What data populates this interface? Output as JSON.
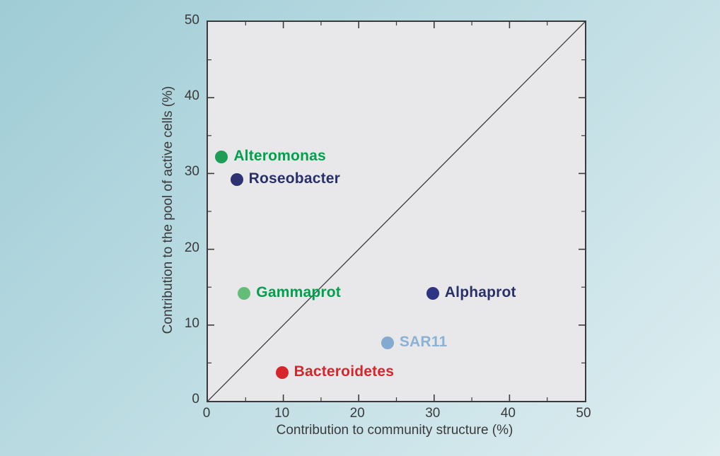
{
  "page": {
    "background_top": "#9fccd6",
    "background_bottom": "#deeef1"
  },
  "chart_data": {
    "type": "scatter",
    "title": "",
    "xlabel": "Contribution to community structure (%)",
    "ylabel": "Contribution to the pool of active cells (%)",
    "xlim": [
      0,
      50
    ],
    "ylim": [
      0,
      50
    ],
    "major_ticks": [
      0,
      10,
      20,
      30,
      40,
      50
    ],
    "minor_ticks": [
      5,
      15,
      25,
      35,
      45
    ],
    "grid": false,
    "plot_bg": "#e8e8ea",
    "axis_color": "#3a3a3a",
    "reference_line": {
      "type": "identity",
      "from_xy": [
        0,
        0
      ],
      "to_xy": [
        50,
        50
      ],
      "color": "#3a3a3a"
    },
    "points": [
      {
        "name": "Alteromonas",
        "x": 2,
        "y": 32,
        "dot_color": "#1f9d55",
        "label_color": "#00a04f"
      },
      {
        "name": "Roseobacter",
        "x": 4,
        "y": 29,
        "dot_color": "#2d3272",
        "label_color": "#2a3068"
      },
      {
        "name": "Gammaprot",
        "x": 5,
        "y": 14,
        "dot_color": "#63bd76",
        "label_color": "#00a04f"
      },
      {
        "name": "Alphaprot",
        "x": 30,
        "y": 14,
        "dot_color": "#2e3484",
        "label_color": "#2a3068"
      },
      {
        "name": "SAR11",
        "x": 24,
        "y": 7.5,
        "dot_color": "#84aad0",
        "label_color": "#8cb1d6"
      },
      {
        "name": "Bacteroidetes",
        "x": 10,
        "y": 3.5,
        "dot_color": "#d6262c",
        "label_color": "#d6262c"
      }
    ]
  }
}
